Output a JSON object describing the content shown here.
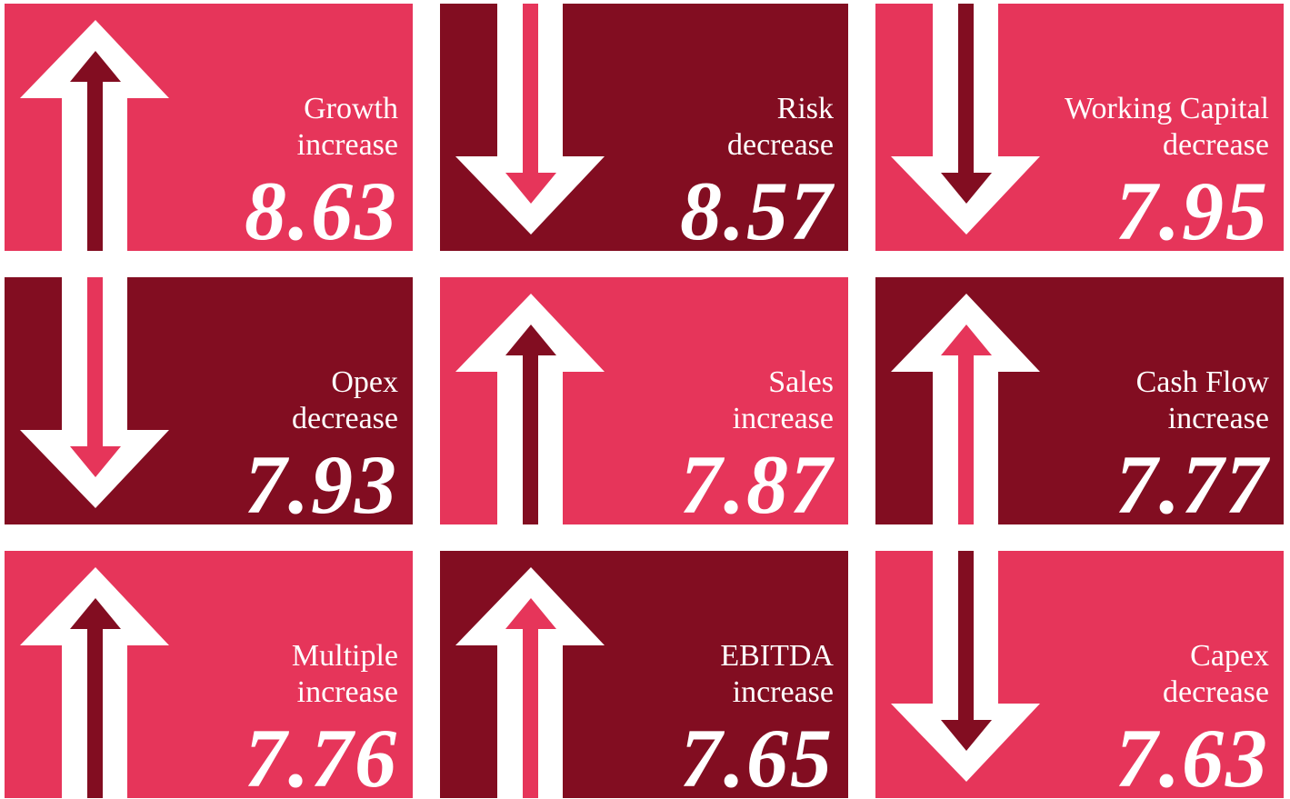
{
  "tiles": [
    {
      "label": "Growth",
      "change": "increase",
      "value": 8.63,
      "direction": "up",
      "color": "#e6355a",
      "arrow_color": "#820d21"
    },
    {
      "label": "Risk",
      "change": "decrease",
      "value": 8.57,
      "direction": "down",
      "color": "#820d21",
      "arrow_color": "#e6355a"
    },
    {
      "label": "Working Capital",
      "change": "decrease",
      "value": 7.95,
      "direction": "down",
      "color": "#e6355a",
      "arrow_color": "#820d21"
    },
    {
      "label": "Opex",
      "change": "decrease",
      "value": 7.93,
      "direction": "down",
      "color": "#820d21",
      "arrow_color": "#e6355a"
    },
    {
      "label": "Sales",
      "change": "increase",
      "value": 7.87,
      "direction": "up",
      "color": "#e6355a",
      "arrow_color": "#820d21"
    },
    {
      "label": "Cash Flow",
      "change": "increase",
      "value": 7.77,
      "direction": "up",
      "color": "#820d21",
      "arrow_color": "#e6355a"
    },
    {
      "label": "Multiple",
      "change": "increase",
      "value": 7.76,
      "direction": "up",
      "color": "#e6355a",
      "arrow_color": "#820d21"
    },
    {
      "label": "EBITDA",
      "change": "increase",
      "value": 7.65,
      "direction": "up",
      "color": "#820d21",
      "arrow_color": "#e6355a"
    },
    {
      "label": "Capex",
      "change": "decrease",
      "value": 7.63,
      "direction": "down",
      "color": "#e6355a",
      "arrow_color": "#820d21"
    }
  ]
}
